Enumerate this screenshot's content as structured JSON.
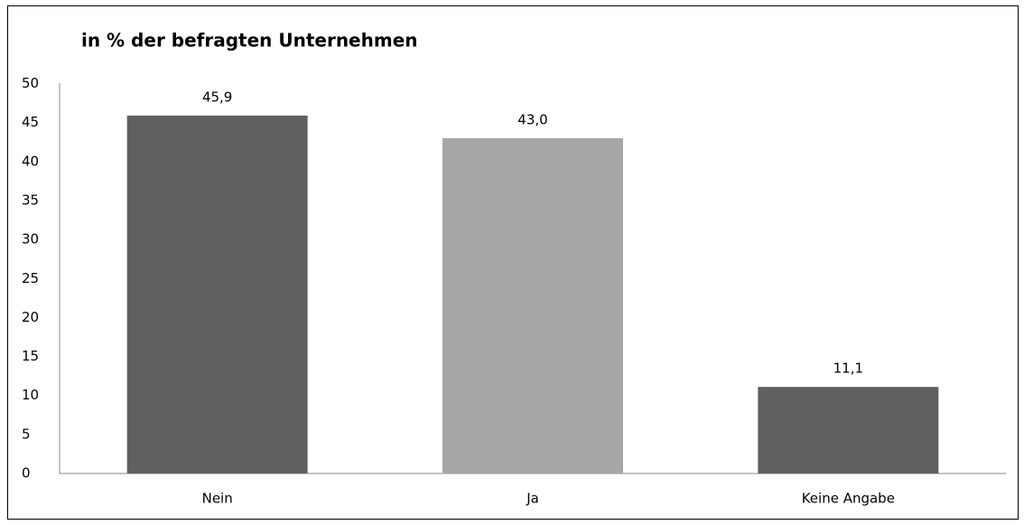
{
  "chart_data": {
    "type": "bar",
    "title": "in % der befragten Unternehmen",
    "categories": [
      "Nein",
      "Ja",
      "Keine Angabe"
    ],
    "values": [
      45.9,
      43.0,
      11.1
    ],
    "value_labels": [
      "45,9",
      "43,0",
      "11,1"
    ],
    "colors": [
      "#606060",
      "#a6a6a6",
      "#606060"
    ],
    "ylim": [
      0,
      50
    ],
    "yticks": [
      0,
      5,
      10,
      15,
      20,
      25,
      30,
      35,
      40,
      45,
      50
    ],
    "grid": false
  }
}
